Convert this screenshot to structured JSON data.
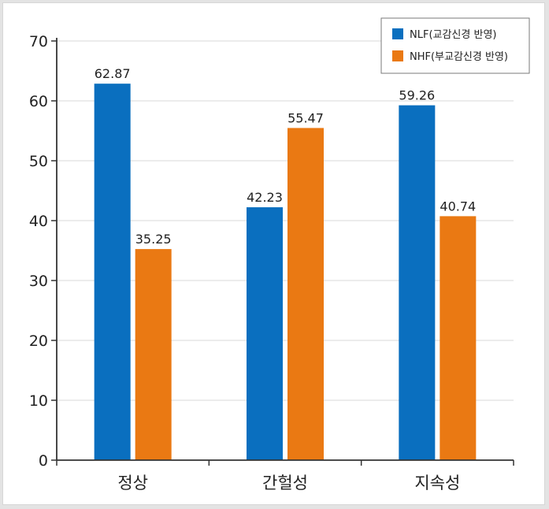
{
  "chart_data": {
    "type": "bar",
    "categories": [
      "정상",
      "간헐성",
      "지속성"
    ],
    "series": [
      {
        "name": "NLF(교감신경 반영)",
        "color": "#0a6fbf",
        "values": [
          62.87,
          42.23,
          59.26
        ],
        "labels": [
          "62.87",
          "42.23",
          "59.26"
        ]
      },
      {
        "name": "NHF(부교감신경 반영)",
        "color": "#ea7913",
        "values": [
          35.25,
          55.47,
          40.74
        ],
        "labels": [
          "35.25",
          "55.47",
          "40.74"
        ]
      }
    ],
    "yticks": [
      "0",
      "10",
      "20",
      "30",
      "40",
      "50",
      "60",
      "70"
    ],
    "ylim": [
      0,
      70
    ],
    "grid": true,
    "legend_position": "top-right"
  }
}
